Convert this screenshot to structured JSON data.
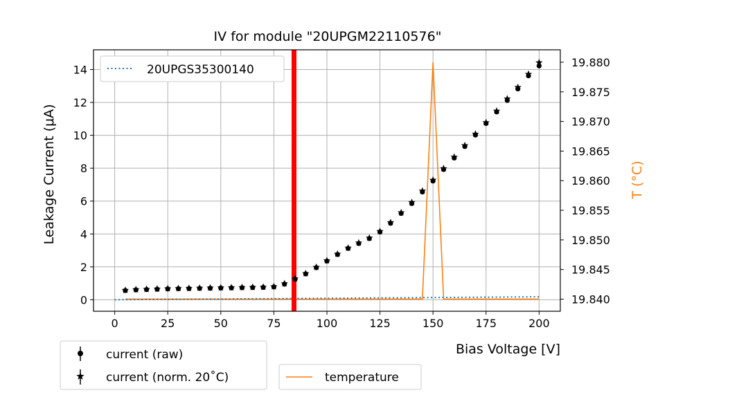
{
  "chart_data": {
    "type": "scatter",
    "title": "IV for module \"20UPGM22110576\"",
    "xlabel": "Bias Voltage [V]",
    "ylabel": "Leakage Current (μA)",
    "y2label": "T (°C)",
    "xlim": [
      -10,
      210
    ],
    "ylim": [
      -0.7,
      15.2
    ],
    "y2lim": [
      19.83795,
      19.8821
    ],
    "grid": true,
    "x_ticks": [
      0,
      25,
      50,
      75,
      100,
      125,
      150,
      175,
      200
    ],
    "y_ticks": [
      0,
      2,
      4,
      6,
      8,
      10,
      12,
      14
    ],
    "y2_ticks": [
      19.84,
      19.845,
      19.85,
      19.855,
      19.86,
      19.865,
      19.87,
      19.875,
      19.88
    ],
    "y2_tick_labels": [
      "19.840",
      "19.845",
      "19.850",
      "19.855",
      "19.860",
      "19.865",
      "19.870",
      "19.875",
      "19.880"
    ],
    "vline": {
      "x": 84.5,
      "color": "#ff0000"
    },
    "x": [
      5,
      10,
      15,
      20,
      25,
      30,
      35,
      40,
      45,
      50,
      55,
      60,
      65,
      70,
      75,
      80,
      85,
      90,
      95,
      100,
      105,
      110,
      115,
      120,
      125,
      130,
      135,
      140,
      145,
      150,
      155,
      160,
      165,
      170,
      175,
      180,
      185,
      190,
      195,
      200
    ],
    "series": [
      {
        "name": "current (raw)",
        "axis": "left",
        "marker": "circle",
        "color": "#000000",
        "values": [
          0.56,
          0.6,
          0.62,
          0.64,
          0.66,
          0.67,
          0.68,
          0.69,
          0.7,
          0.71,
          0.72,
          0.73,
          0.74,
          0.75,
          0.78,
          0.95,
          1.25,
          1.57,
          1.95,
          2.35,
          2.75,
          3.12,
          3.42,
          3.72,
          4.12,
          4.65,
          5.25,
          5.85,
          6.55,
          7.22,
          7.92,
          8.62,
          9.32,
          10.02,
          10.72,
          11.42,
          12.12,
          12.82,
          13.62,
          14.22
        ]
      },
      {
        "name": "current (norm. 20˚C)",
        "axis": "left",
        "marker": "star",
        "color": "#000000",
        "values": [
          0.58,
          0.62,
          0.64,
          0.66,
          0.68,
          0.69,
          0.7,
          0.71,
          0.72,
          0.73,
          0.74,
          0.75,
          0.76,
          0.77,
          0.8,
          0.98,
          1.28,
          1.6,
          1.98,
          2.38,
          2.78,
          3.15,
          3.46,
          3.76,
          4.16,
          4.7,
          5.3,
          5.92,
          6.62,
          7.28,
          7.98,
          8.68,
          9.38,
          10.08,
          10.78,
          11.48,
          12.22,
          12.92,
          13.72,
          14.42
        ]
      },
      {
        "name": "20UPGS35300140",
        "axis": "left",
        "style": "dotted",
        "color": "#1f77b4",
        "x": [
          0,
          200
        ],
        "values": [
          0.0,
          0.18
        ]
      },
      {
        "name": "temperature",
        "axis": "right",
        "style": "solid",
        "color": "#ff7f0e",
        "x": [
          5,
          145,
          150,
          155,
          200
        ],
        "values": [
          19.84,
          19.84,
          19.88,
          19.84,
          19.84
        ]
      }
    ],
    "legends": {
      "inner": [
        "20UPGS35300140"
      ],
      "bottom_left": [
        "current (raw)",
        "current (norm. 20˚C)"
      ],
      "bottom_mid": [
        "temperature"
      ]
    }
  }
}
